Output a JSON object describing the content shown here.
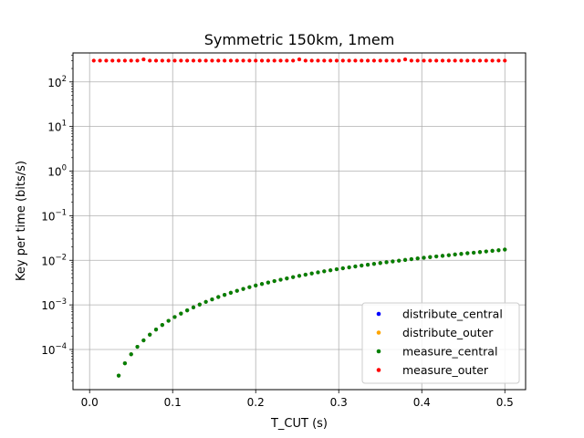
{
  "chart_data": {
    "type": "scatter",
    "title": "Symmetric 150km, 1mem",
    "xlabel": "T_CUT (s)",
    "ylabel": "Key per time (bits/s)",
    "xlim": [
      -0.02,
      0.525
    ],
    "ylim_log10": [
      -4.9,
      2.65
    ],
    "yscale": "log",
    "grid": true,
    "legend_position": "lower-right",
    "x_ticks": [
      "0.0",
      "0.1",
      "0.2",
      "0.3",
      "0.4",
      "0.5"
    ],
    "y_ticks": [
      {
        "base": "10",
        "exp": "2",
        "value": 100
      },
      {
        "base": "10",
        "exp": "1",
        "value": 10
      },
      {
        "base": "10",
        "exp": "0",
        "value": 1
      },
      {
        "base": "10",
        "exp": "−1",
        "value": 0.1
      },
      {
        "base": "10",
        "exp": "−2",
        "value": 0.01
      },
      {
        "base": "10",
        "exp": "−3",
        "value": 0.001
      },
      {
        "base": "10",
        "exp": "−4",
        "value": 0.0001
      }
    ],
    "x_tick_values": [
      0.0,
      0.1,
      0.2,
      0.3,
      0.4,
      0.5
    ],
    "series": [
      {
        "name": "distribute_central",
        "color": "#0000ff",
        "x": [
          0.035,
          0.0425,
          0.05,
          0.0575,
          0.065,
          0.0725,
          0.08,
          0.0875,
          0.095,
          0.1025,
          0.11,
          0.1175,
          0.125,
          0.1325,
          0.14,
          0.1475,
          0.155,
          0.1625,
          0.17,
          0.1775,
          0.185,
          0.1925,
          0.2,
          0.2075,
          0.215,
          0.2225,
          0.23,
          0.2375,
          0.245,
          0.2525,
          0.26,
          0.2675,
          0.275,
          0.2825,
          0.29,
          0.2975,
          0.305,
          0.3125,
          0.32,
          0.3275,
          0.335,
          0.3425,
          0.35,
          0.3575,
          0.365,
          0.3725,
          0.38,
          0.3875,
          0.395,
          0.4025,
          0.41,
          0.4175,
          0.425,
          0.4325,
          0.44,
          0.4475,
          0.455,
          0.4625,
          0.47,
          0.4775,
          0.485,
          0.4925,
          0.5
        ],
        "y": [
          2.6e-05,
          4.9e-05,
          7.8e-05,
          0.000115,
          0.00016,
          0.000215,
          0.00028,
          0.000355,
          0.00044,
          0.000535,
          0.00064,
          0.000755,
          0.00088,
          0.00102,
          0.00117,
          0.00133,
          0.0015,
          0.00168,
          0.00187,
          0.00207,
          0.00228,
          0.0025,
          0.00272,
          0.00295,
          0.00318,
          0.00342,
          0.00367,
          0.00393,
          0.0042,
          0.00448,
          0.00477,
          0.00507,
          0.00537,
          0.00567,
          0.00598,
          0.0063,
          0.00662,
          0.00695,
          0.00728,
          0.00762,
          0.00797,
          0.00832,
          0.00868,
          0.00905,
          0.00942,
          0.0098,
          0.0102,
          0.0106,
          0.011,
          0.0114,
          0.0118,
          0.0122,
          0.0126,
          0.013,
          0.0135,
          0.0139,
          0.0144,
          0.0148,
          0.0153,
          0.0158,
          0.0163,
          0.0168,
          0.0174
        ]
      },
      {
        "name": "distribute_outer",
        "color": "#ffa500",
        "x": [
          0.035,
          0.0425,
          0.05,
          0.0575,
          0.065,
          0.0725,
          0.08,
          0.0875,
          0.095,
          0.1025,
          0.11,
          0.1175,
          0.125,
          0.1325,
          0.14,
          0.1475,
          0.155,
          0.1625,
          0.17,
          0.1775,
          0.185,
          0.1925,
          0.2,
          0.2075,
          0.215,
          0.2225,
          0.23,
          0.2375,
          0.245,
          0.2525,
          0.26,
          0.2675,
          0.275,
          0.2825,
          0.29,
          0.2975,
          0.305,
          0.3125,
          0.32,
          0.3275,
          0.335,
          0.3425,
          0.35,
          0.3575,
          0.365,
          0.3725,
          0.38,
          0.3875,
          0.395,
          0.4025,
          0.41,
          0.4175,
          0.425,
          0.4325,
          0.44,
          0.4475,
          0.455,
          0.4625,
          0.47,
          0.4775,
          0.485,
          0.4925,
          0.5
        ],
        "y": [
          2.6e-05,
          4.9e-05,
          7.8e-05,
          0.000115,
          0.00016,
          0.000215,
          0.00028,
          0.000355,
          0.00044,
          0.000535,
          0.00064,
          0.000755,
          0.00088,
          0.00102,
          0.00117,
          0.00133,
          0.0015,
          0.00168,
          0.00187,
          0.00207,
          0.00228,
          0.0025,
          0.00272,
          0.00295,
          0.00318,
          0.00342,
          0.00367,
          0.00393,
          0.0042,
          0.00448,
          0.00477,
          0.00507,
          0.00537,
          0.00567,
          0.00598,
          0.0063,
          0.00662,
          0.00695,
          0.00728,
          0.00762,
          0.00797,
          0.00832,
          0.00868,
          0.00905,
          0.00942,
          0.0098,
          0.0102,
          0.0106,
          0.011,
          0.0114,
          0.0118,
          0.0122,
          0.0126,
          0.013,
          0.0135,
          0.0139,
          0.0144,
          0.0148,
          0.0153,
          0.0158,
          0.0163,
          0.0168,
          0.0174
        ]
      },
      {
        "name": "measure_central",
        "color": "#008000",
        "x": [
          0.035,
          0.0425,
          0.05,
          0.0575,
          0.065,
          0.0725,
          0.08,
          0.0875,
          0.095,
          0.1025,
          0.11,
          0.1175,
          0.125,
          0.1325,
          0.14,
          0.1475,
          0.155,
          0.1625,
          0.17,
          0.1775,
          0.185,
          0.1925,
          0.2,
          0.2075,
          0.215,
          0.2225,
          0.23,
          0.2375,
          0.245,
          0.2525,
          0.26,
          0.2675,
          0.275,
          0.2825,
          0.29,
          0.2975,
          0.305,
          0.3125,
          0.32,
          0.3275,
          0.335,
          0.3425,
          0.35,
          0.3575,
          0.365,
          0.3725,
          0.38,
          0.3875,
          0.395,
          0.4025,
          0.41,
          0.4175,
          0.425,
          0.4325,
          0.44,
          0.4475,
          0.455,
          0.4625,
          0.47,
          0.4775,
          0.485,
          0.4925,
          0.5
        ],
        "y": [
          2.6e-05,
          4.9e-05,
          7.8e-05,
          0.000115,
          0.00016,
          0.000215,
          0.00028,
          0.000355,
          0.00044,
          0.000535,
          0.00064,
          0.000755,
          0.00088,
          0.00102,
          0.00117,
          0.00133,
          0.0015,
          0.00168,
          0.00187,
          0.00207,
          0.00228,
          0.0025,
          0.00272,
          0.00295,
          0.00318,
          0.00342,
          0.00367,
          0.00393,
          0.0042,
          0.00448,
          0.00477,
          0.00507,
          0.00537,
          0.00567,
          0.00598,
          0.0063,
          0.00662,
          0.00695,
          0.00728,
          0.00762,
          0.00797,
          0.00832,
          0.00868,
          0.00905,
          0.00942,
          0.0098,
          0.0102,
          0.0106,
          0.011,
          0.0114,
          0.0118,
          0.0122,
          0.0126,
          0.013,
          0.0135,
          0.0139,
          0.0144,
          0.0148,
          0.0153,
          0.0158,
          0.0163,
          0.0168,
          0.0174
        ]
      },
      {
        "name": "measure_outer",
        "color": "#ff0000",
        "x": [
          0.005,
          0.0125,
          0.02,
          0.0275,
          0.035,
          0.0425,
          0.05,
          0.0575,
          0.065,
          0.0725,
          0.08,
          0.0875,
          0.095,
          0.1025,
          0.11,
          0.1175,
          0.125,
          0.1325,
          0.14,
          0.1475,
          0.155,
          0.1625,
          0.17,
          0.1775,
          0.185,
          0.1925,
          0.2,
          0.2075,
          0.215,
          0.2225,
          0.23,
          0.2375,
          0.245,
          0.2525,
          0.26,
          0.2675,
          0.275,
          0.2825,
          0.29,
          0.2975,
          0.305,
          0.3125,
          0.32,
          0.3275,
          0.335,
          0.3425,
          0.35,
          0.3575,
          0.365,
          0.3725,
          0.38,
          0.3875,
          0.395,
          0.4025,
          0.41,
          0.4175,
          0.425,
          0.4325,
          0.44,
          0.4475,
          0.455,
          0.4625,
          0.47,
          0.4775,
          0.485,
          0.4925,
          0.5
        ],
        "y": [
          300,
          300,
          300,
          300,
          300,
          300,
          300,
          300,
          320,
          300,
          300,
          300,
          300,
          300,
          300,
          300,
          300,
          300,
          300,
          300,
          300,
          300,
          300,
          300,
          300,
          300,
          300,
          300,
          300,
          300,
          300,
          300,
          300,
          320,
          300,
          300,
          300,
          300,
          300,
          300,
          300,
          300,
          300,
          300,
          300,
          300,
          300,
          300,
          300,
          300,
          320,
          300,
          300,
          300,
          300,
          300,
          300,
          300,
          300,
          300,
          300,
          300,
          300,
          300,
          300,
          300,
          300
        ]
      }
    ]
  }
}
